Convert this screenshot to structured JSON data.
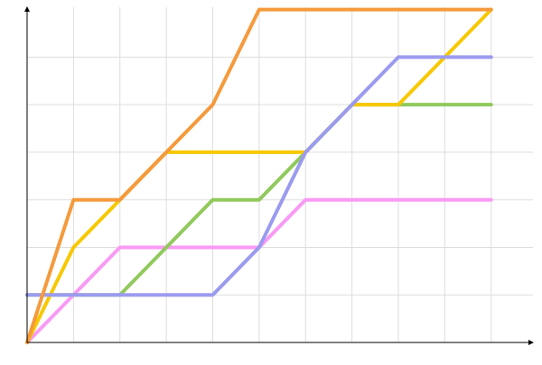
{
  "chart_data": {
    "type": "line",
    "x": [
      0,
      1,
      2,
      3,
      4,
      5,
      6,
      7,
      8,
      9,
      10
    ],
    "series": [
      {
        "color": "#f99af5",
        "values": [
          0,
          1,
          2,
          2,
          2,
          2,
          3,
          3,
          3,
          3,
          3
        ]
      },
      {
        "color": "#91c95c",
        "values": [
          1,
          1,
          1,
          2,
          3,
          3,
          4,
          5,
          5,
          5,
          5
        ]
      },
      {
        "color": "#f7c800",
        "values": [
          0,
          2,
          3,
          4,
          4,
          4,
          4,
          5,
          5,
          6,
          7
        ]
      },
      {
        "color": "#9a9bef",
        "values": [
          1,
          1,
          1,
          1,
          1,
          2,
          4,
          5,
          6,
          6,
          6
        ]
      },
      {
        "color": "#f59a3c",
        "values": [
          0,
          3,
          3,
          4,
          5,
          7,
          7,
          7,
          7,
          7,
          7
        ]
      }
    ],
    "xlim": [
      0,
      10.9
    ],
    "ylim": [
      0,
      7.05
    ],
    "xticks": [
      1,
      2,
      3,
      4,
      5,
      6,
      7,
      8,
      9,
      10
    ],
    "yticks": [
      1,
      2,
      3,
      4,
      5,
      6
    ],
    "grid": true,
    "tick_labels": false
  }
}
